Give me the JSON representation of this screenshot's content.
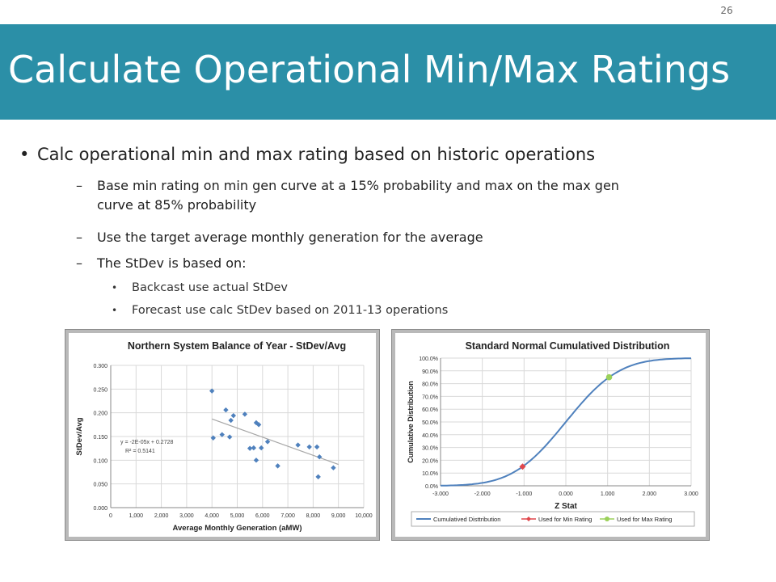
{
  "page": {
    "number": "26",
    "title": "Calculate Operational Min/Max Ratings"
  },
  "content": {
    "bullet1": "Calc operational min and max rating based on historic operations",
    "dash1_line1": "Base min rating on min gen curve at a 15% probability and max on the max gen",
    "dash1_line2": "curve at 85% probability",
    "dash2": "Use the target average monthly generation for the average",
    "dash3": "The StDev is based on:",
    "sub1": "Backcast use actual StDev",
    "sub2": "Forecast use calc StDev based on 2011-13 operations"
  },
  "chart_data": [
    {
      "type": "scatter",
      "title": "Northern System Balance of Year - StDev/Avg",
      "xlabel": "Average Monthly Generation (aMW)",
      "ylabel": "StDev/Avg",
      "xlim": [
        0,
        10000
      ],
      "ylim": [
        0,
        0.3
      ],
      "xticks": [
        "0",
        "1,000",
        "2,000",
        "3,000",
        "4,000",
        "5,000",
        "6,000",
        "7,000",
        "8,000",
        "9,000",
        "10,000"
      ],
      "yticks": [
        "0.000",
        "0.050",
        "0.100",
        "0.150",
        "0.200",
        "0.250",
        "0.300"
      ],
      "grid": true,
      "marker_color": "#4f81bd",
      "trendline_color": "#a6a6a6",
      "equation": "y = -2E-05x + 0.2728",
      "r_squared": "R² = 0.5141",
      "trendline": {
        "x": [
          4000,
          9000
        ],
        "y": [
          0.187,
          0.091
        ]
      },
      "points": [
        {
          "x": 4000,
          "y": 0.246
        },
        {
          "x": 4050,
          "y": 0.147
        },
        {
          "x": 4400,
          "y": 0.154
        },
        {
          "x": 4550,
          "y": 0.206
        },
        {
          "x": 4700,
          "y": 0.149
        },
        {
          "x": 4750,
          "y": 0.184
        },
        {
          "x": 4850,
          "y": 0.194
        },
        {
          "x": 5300,
          "y": 0.197
        },
        {
          "x": 5500,
          "y": 0.125
        },
        {
          "x": 5650,
          "y": 0.126
        },
        {
          "x": 5750,
          "y": 0.179
        },
        {
          "x": 5750,
          "y": 0.1
        },
        {
          "x": 5850,
          "y": 0.175
        },
        {
          "x": 5950,
          "y": 0.126
        },
        {
          "x": 6200,
          "y": 0.139
        },
        {
          "x": 6600,
          "y": 0.088
        },
        {
          "x": 7400,
          "y": 0.132
        },
        {
          "x": 7850,
          "y": 0.128
        },
        {
          "x": 8150,
          "y": 0.128
        },
        {
          "x": 8200,
          "y": 0.065
        },
        {
          "x": 8250,
          "y": 0.107
        },
        {
          "x": 8800,
          "y": 0.084
        }
      ]
    },
    {
      "type": "line",
      "title": "Standard Normal Cumulatived Distribution",
      "xlabel": "Z Stat",
      "ylabel": "Cumulative Distribution",
      "xlim": [
        -3,
        3
      ],
      "ylim": [
        0,
        1
      ],
      "xticks": [
        "-3.000",
        "-2.000",
        "-1.000",
        "0.000",
        "1.000",
        "2.000",
        "3.000"
      ],
      "yticks": [
        "0.0%",
        "10.0%",
        "20.0%",
        "30.0%",
        "40.0%",
        "50.0%",
        "60.0%",
        "70.0%",
        "80.0%",
        "90.0%",
        "100.0%"
      ],
      "grid": true,
      "legend_position": "bottom",
      "series": [
        {
          "name": "Cumulatived Disttribution",
          "kind": "line",
          "color": "#4f81bd",
          "function": "normal_cdf"
        },
        {
          "name": "Used for Min Rating",
          "kind": "marker",
          "color": "#e0474c",
          "x": -1.036,
          "y": 0.15
        },
        {
          "name": "Used for Max Rating",
          "kind": "marker",
          "color": "#9bd15a",
          "x": 1.036,
          "y": 0.85
        }
      ]
    }
  ]
}
